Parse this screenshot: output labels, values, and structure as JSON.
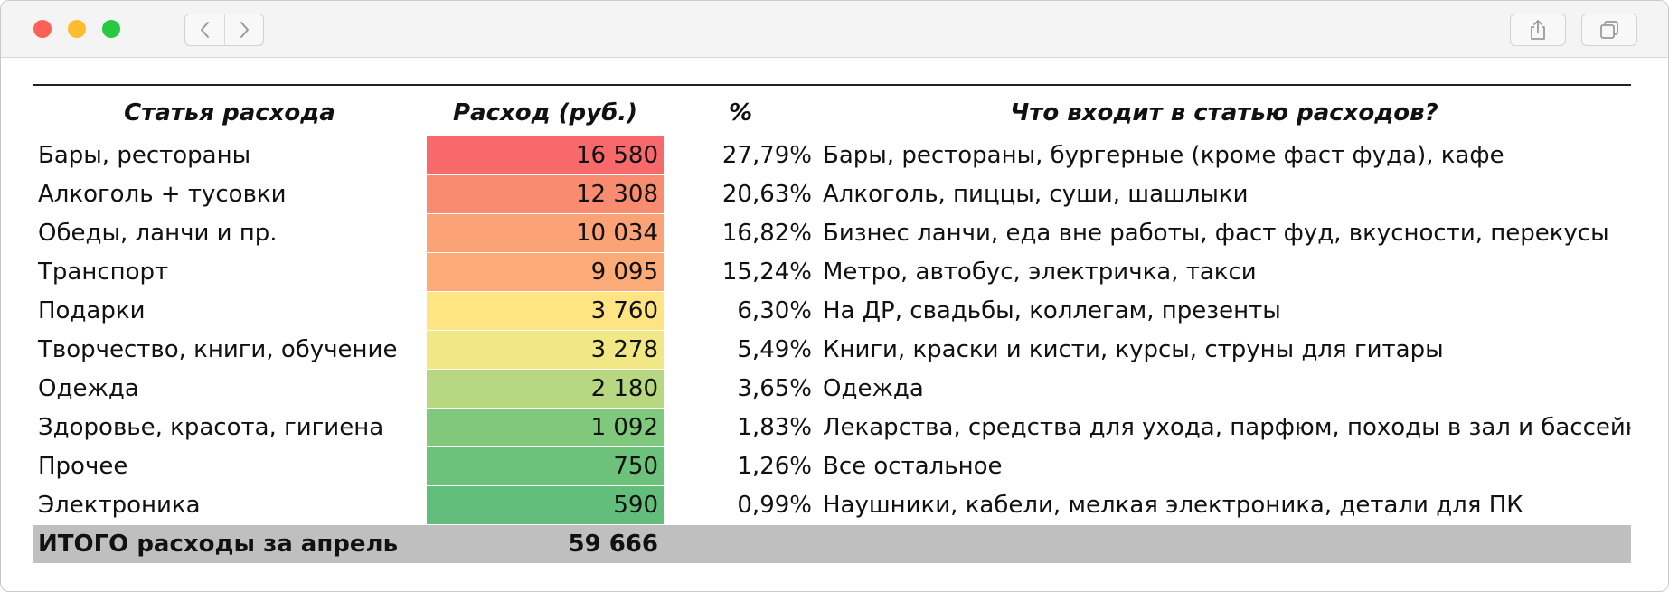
{
  "table": {
    "headers": {
      "category": "Статья расхода",
      "amount": "Расход (руб.)",
      "percent": "%",
      "description": "Что входит в статью расходов?"
    },
    "rows": [
      {
        "category": "Бары, рестораны",
        "amount": "16 580",
        "percent": "27,79%",
        "description": "Бары, рестораны, бургерные (кроме фаст фуда), кафе",
        "color": "#f8696b"
      },
      {
        "category": "Алкоголь + тусовки",
        "amount": "12 308",
        "percent": "20,63%",
        "description": "Алкоголь, пиццы, суши, шашлыки",
        "color": "#f98c70"
      },
      {
        "category": "Обеды, ланчи и пр.",
        "amount": "10 034",
        "percent": "16,82%",
        "description": "Бизнес ланчи, еда вне работы, фаст фуд, вкусности, перекусы",
        "color": "#fba276"
      },
      {
        "category": "Транспорт",
        "amount": "9 095",
        "percent": "15,24%",
        "description": "Метро, автобус, электричка, такси",
        "color": "#fcab78"
      },
      {
        "category": "Подарки",
        "amount": "3 760",
        "percent": "6,30%",
        "description": "На ДР, свадьбы, коллегам, презенты",
        "color": "#fee483"
      },
      {
        "category": "Творчество, книги, обучение",
        "amount": "3 278",
        "percent": "5,49%",
        "description": "Книги, краски и кисти, курсы, струны для гитары",
        "color": "#f1e784"
      },
      {
        "category": "Одежда",
        "amount": "2 180",
        "percent": "3,65%",
        "description": "Одежда",
        "color": "#b7d780"
      },
      {
        "category": "Здоровье, красота, гигиена",
        "amount": "1 092",
        "percent": "1,83%",
        "description": "Лекарства, средства для ухода, парфюм, походы в зал и бассейн",
        "color": "#7fc87c"
      },
      {
        "category": "Прочее",
        "amount": "750",
        "percent": "1,26%",
        "description": "Все остальное",
        "color": "#6cc27b"
      },
      {
        "category": "Электроника",
        "amount": "590",
        "percent": "0,99%",
        "description": "Наушники, кабели, мелкая электроника, детали для ПК",
        "color": "#63be7b"
      }
    ],
    "total": {
      "label": "ИТОГО расходы за апрель",
      "amount": "59 666"
    }
  },
  "window": {
    "icons": {
      "back": "chevron-left-icon",
      "forward": "chevron-right-icon",
      "share": "share-icon",
      "tabs": "tabs-icon"
    },
    "colors": {
      "close": "#fe5f57",
      "minimize": "#febc2e",
      "zoom": "#28c840",
      "total_row": "#bfbfbf"
    }
  }
}
